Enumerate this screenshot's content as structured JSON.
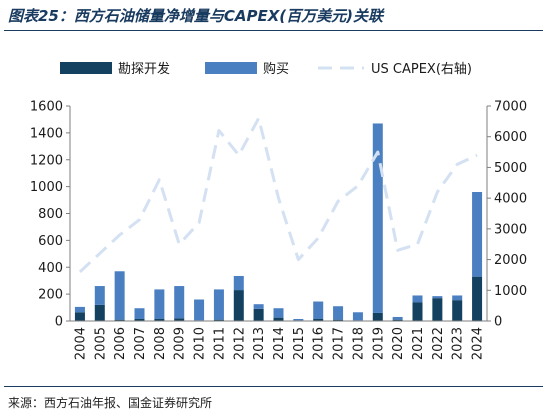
{
  "figure": {
    "title": "图表25：西方石油储量净增量与CAPEX(百万美元)关联",
    "source": "来源：西方石油年报、国金证券研究所"
  },
  "colors": {
    "exploration": "#13415f",
    "purchase": "#4a7fc1",
    "capex": "#d4e1f2",
    "axis": "#7f7f7f",
    "title": "#1a3b60"
  },
  "chart_data": {
    "type": "bar",
    "stacked": true,
    "categories": [
      "2004",
      "2005",
      "2006",
      "2007",
      "2008",
      "2009",
      "2010",
      "2011",
      "2012",
      "2013",
      "2014",
      "2015",
      "2016",
      "2017",
      "2018",
      "2019",
      "2020",
      "2021",
      "2022",
      "2023",
      "2024"
    ],
    "series": [
      {
        "name": "勘探开发",
        "axis": "left",
        "color": "#13415f",
        "values": [
          65,
          120,
          10,
          15,
          15,
          20,
          5,
          10,
          230,
          90,
          25,
          5,
          15,
          10,
          5,
          60,
          10,
          140,
          170,
          155,
          330
        ]
      },
      {
        "name": "购买",
        "axis": "left",
        "color": "#4a7fc1",
        "values": [
          40,
          140,
          360,
          80,
          220,
          240,
          155,
          225,
          105,
          35,
          70,
          10,
          130,
          100,
          60,
          1410,
          20,
          50,
          15,
          35,
          630
        ]
      },
      {
        "name": "US CAPEX(右轴)",
        "axis": "right",
        "type": "line",
        "style": "dashed",
        "color": "#d4e1f2",
        "values": [
          1600,
          2200,
          2800,
          3300,
          4600,
          2500,
          3200,
          6200,
          5400,
          6600,
          4000,
          2000,
          2700,
          3900,
          4400,
          5500,
          2300,
          2500,
          4200,
          5100,
          5400
        ]
      }
    ],
    "ylim": [
      0,
      1600
    ],
    "y_ticks": [
      0,
      200,
      400,
      600,
      800,
      1000,
      1200,
      1400,
      1600
    ],
    "y2lim": [
      0,
      7000
    ],
    "y2_ticks": [
      0,
      1000,
      2000,
      3000,
      4000,
      5000,
      6000,
      7000
    ],
    "legend": "top",
    "grid": false
  }
}
